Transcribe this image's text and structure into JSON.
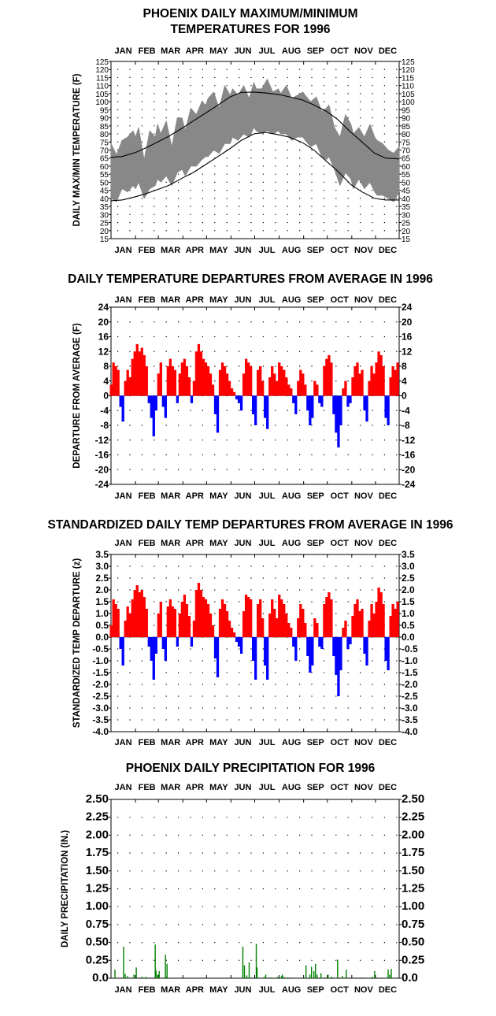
{
  "chart_data": [
    {
      "type": "line",
      "title_lines": [
        "PHOENIX DAILY MAXIMUM/MINIMUM",
        "TEMPERATURES FOR 1996"
      ],
      "ylabel": "DAILY MAX/MIN TEMPERATURE (F)",
      "months": [
        "JAN",
        "FEB",
        "MAR",
        "APR",
        "MAY",
        "JUN",
        "JUL",
        "AUG",
        "SEP",
        "OCT",
        "NOV",
        "DEC"
      ],
      "ylim": [
        15,
        125
      ],
      "yticks": [
        "15",
        "20",
        "25",
        "30",
        "35",
        "40",
        "45",
        "50",
        "55",
        "60",
        "65",
        "70",
        "75",
        "80",
        "85",
        "90",
        "95",
        "100",
        "105",
        "110",
        "115",
        "120",
        "125"
      ],
      "grid": "dotted",
      "x_unit": "day of year",
      "series": [
        {
          "key": "normal_max",
          "color": "#000000",
          "x": [
            1,
            15,
            32,
            46,
            60,
            74,
            91,
            105,
            121,
            135,
            152,
            166,
            182,
            196,
            213,
            227,
            244,
            258,
            274,
            288,
            305,
            319,
            335,
            349,
            366
          ],
          "y": [
            65.5,
            66,
            68.5,
            71.5,
            75,
            78.5,
            83.5,
            88,
            93,
            97.5,
            103,
            105.8,
            106,
            105.5,
            104.5,
            103,
            101,
            98,
            94,
            89,
            81,
            75,
            68,
            65,
            64.5
          ]
        },
        {
          "key": "normal_min",
          "color": "#000000",
          "x": [
            1,
            15,
            32,
            46,
            60,
            74,
            91,
            105,
            121,
            135,
            152,
            166,
            182,
            196,
            213,
            227,
            244,
            258,
            274,
            288,
            305,
            319,
            335,
            349,
            366
          ],
          "y": [
            38.5,
            39,
            41,
            43,
            45.5,
            48,
            52.5,
            56,
            61,
            65.5,
            71,
            76,
            80,
            81,
            79.5,
            78,
            74.5,
            70,
            63,
            57,
            48.5,
            44,
            40,
            39,
            39
          ]
        }
      ],
      "observed_band": {
        "color": "#888888",
        "x": [
          1,
          8,
          15,
          22,
          29,
          32,
          36,
          43,
          50,
          57,
          60,
          64,
          71,
          78,
          85,
          91,
          95,
          102,
          109,
          116,
          121,
          124,
          131,
          138,
          145,
          152,
          155,
          162,
          169,
          176,
          182,
          185,
          192,
          199,
          206,
          213,
          216,
          223,
          230,
          237,
          244,
          247,
          254,
          261,
          268,
          274,
          277,
          284,
          291,
          298,
          305,
          308,
          315,
          322,
          329,
          335,
          338,
          345,
          352,
          359,
          366
        ],
        "max": [
          74,
          67,
          76,
          78,
          82,
          78,
          84,
          64,
          82,
          78,
          86,
          80,
          88,
          72,
          90,
          90,
          82,
          96,
          92,
          100,
          98,
          102,
          106,
          96,
          110,
          104,
          108,
          104,
          110,
          102,
          112,
          108,
          108,
          114,
          106,
          108,
          105,
          110,
          102,
          104,
          106,
          104,
          100,
          103,
          94,
          96,
          98,
          84,
          78,
          92,
          86,
          80,
          84,
          78,
          86,
          78,
          76,
          74,
          70,
          68,
          72
        ],
        "min": [
          40,
          38,
          46,
          44,
          48,
          46,
          50,
          40,
          46,
          48,
          52,
          50,
          54,
          48,
          56,
          58,
          54,
          60,
          60,
          64,
          66,
          66,
          70,
          68,
          74,
          74,
          78,
          76,
          80,
          78,
          84,
          82,
          80,
          82,
          80,
          82,
          80,
          80,
          76,
          78,
          78,
          76,
          72,
          74,
          66,
          64,
          66,
          58,
          48,
          56,
          52,
          46,
          52,
          46,
          50,
          44,
          42,
          42,
          40,
          38,
          44
        ]
      }
    },
    {
      "type": "bar",
      "title": "DAILY TEMPERATURE DEPARTURES FROM AVERAGE IN 1996",
      "ylabel": "DEPARTURE FROM AVERAGE (F)",
      "months": [
        "JAN",
        "FEB",
        "MAR",
        "APR",
        "MAY",
        "JUN",
        "JUL",
        "AUG",
        "SEP",
        "OCT",
        "NOV",
        "DEC"
      ],
      "ylim": [
        -24,
        24
      ],
      "yticks": [
        "-24",
        "-20",
        "-16",
        "-12",
        "-8",
        "-4",
        "0",
        "4",
        "8",
        "12",
        "16",
        "20",
        "24"
      ],
      "pos_color": "#ff0000",
      "neg_color": "#0000ff",
      "x_unit": "day of year",
      "x": [
        1,
        4,
        7,
        10,
        13,
        16,
        19,
        22,
        25,
        28,
        31,
        34,
        37,
        40,
        43,
        46,
        49,
        52,
        55,
        58,
        61,
        64,
        67,
        70,
        73,
        76,
        79,
        82,
        85,
        88,
        91,
        94,
        97,
        100,
        103,
        106,
        109,
        112,
        115,
        118,
        121,
        124,
        127,
        130,
        133,
        136,
        139,
        142,
        145,
        148,
        151,
        154,
        157,
        160,
        163,
        166,
        169,
        172,
        175,
        178,
        181,
        184,
        187,
        190,
        193,
        196,
        199,
        202,
        205,
        208,
        211,
        214,
        217,
        220,
        223,
        226,
        229,
        232,
        235,
        238,
        241,
        244,
        247,
        250,
        253,
        256,
        259,
        262,
        265,
        268,
        271,
        274,
        277,
        280,
        283,
        286,
        289,
        292,
        295,
        298,
        301,
        304,
        307,
        310,
        313,
        316,
        319,
        322,
        325,
        328,
        331,
        334,
        337,
        340,
        343,
        346,
        349,
        352,
        355,
        358,
        361,
        364
      ],
      "values": [
        3,
        9,
        8,
        7,
        -3,
        -7,
        4,
        7,
        5,
        10,
        12,
        14,
        12,
        13,
        11,
        8,
        -2,
        -6,
        -11,
        -4,
        6,
        9,
        -3,
        -6,
        8,
        10,
        8,
        7,
        -2,
        6,
        9,
        10,
        8,
        5,
        -2,
        4,
        12,
        14,
        12,
        10,
        9,
        8,
        6,
        3,
        -5,
        -10,
        7,
        9,
        8,
        6,
        4,
        2,
        1,
        -1,
        -2,
        -4,
        6,
        10,
        9,
        8,
        -5,
        -8,
        7,
        8,
        4,
        -6,
        -9,
        5,
        8,
        6,
        4,
        9,
        8,
        7,
        5,
        3,
        2,
        -2,
        -5,
        4,
        7,
        6,
        3,
        -4,
        -8,
        -6,
        4,
        3,
        -2,
        -3,
        8,
        10,
        11,
        9,
        -5,
        -10,
        -14,
        -8,
        2,
        4,
        -3,
        -2,
        5,
        8,
        9,
        6,
        7,
        -4,
        -7,
        4,
        8,
        6,
        9,
        12,
        11,
        8,
        -6,
        -8,
        5,
        8,
        7,
        9
      ]
    },
    {
      "type": "bar",
      "title": "STANDARDIZED DAILY TEMP DEPARTURES FROM AVERAGE IN 1996",
      "ylabel": "STANDARDIZED TEMP DEPARTURE (z)",
      "months": [
        "JAN",
        "FEB",
        "MAR",
        "APR",
        "MAY",
        "JUN",
        "JUL",
        "AUG",
        "SEP",
        "OCT",
        "NOV",
        "DEC"
      ],
      "ylim": [
        -4.0,
        3.5
      ],
      "yticks": [
        "-4.0",
        "-3.5",
        "-3.0",
        "-2.5",
        "-2.0",
        "-1.5",
        "-1.0",
        "-0.5",
        "0.0",
        "0.5",
        "1.0",
        "1.5",
        "2.0",
        "2.5",
        "3.0",
        "3.5"
      ],
      "pos_color": "#ff0000",
      "neg_color": "#0000ff",
      "x_unit": "day of year",
      "x": [
        1,
        4,
        7,
        10,
        13,
        16,
        19,
        22,
        25,
        28,
        31,
        34,
        37,
        40,
        43,
        46,
        49,
        52,
        55,
        58,
        61,
        64,
        67,
        70,
        73,
        76,
        79,
        82,
        85,
        88,
        91,
        94,
        97,
        100,
        103,
        106,
        109,
        112,
        115,
        118,
        121,
        124,
        127,
        130,
        133,
        136,
        139,
        142,
        145,
        148,
        151,
        154,
        157,
        160,
        163,
        166,
        169,
        172,
        175,
        178,
        181,
        184,
        187,
        190,
        193,
        196,
        199,
        202,
        205,
        208,
        211,
        214,
        217,
        220,
        223,
        226,
        229,
        232,
        235,
        238,
        241,
        244,
        247,
        250,
        253,
        256,
        259,
        262,
        265,
        268,
        271,
        274,
        277,
        280,
        283,
        286,
        289,
        292,
        295,
        298,
        301,
        304,
        307,
        310,
        313,
        316,
        319,
        322,
        325,
        328,
        331,
        334,
        337,
        340,
        343,
        346,
        349,
        352,
        355,
        358,
        361,
        364
      ],
      "values": [
        0.5,
        1.6,
        1.4,
        1.2,
        -0.5,
        -1.2,
        0.7,
        1.3,
        1.0,
        1.6,
        2.0,
        2.2,
        1.9,
        2.0,
        1.7,
        1.2,
        -0.4,
        -1.0,
        -1.8,
        -0.7,
        1.0,
        1.5,
        -0.5,
        -1.0,
        1.3,
        1.6,
        1.3,
        1.2,
        -0.4,
        1.0,
        1.5,
        1.8,
        1.4,
        0.9,
        -0.4,
        0.7,
        2.0,
        2.3,
        2.0,
        1.7,
        1.6,
        1.4,
        1.0,
        0.5,
        -0.9,
        -1.7,
        1.2,
        1.6,
        1.4,
        1.1,
        0.7,
        0.4,
        0.2,
        -0.2,
        -0.4,
        -0.7,
        1.1,
        1.8,
        1.7,
        1.6,
        -1.0,
        -1.8,
        1.4,
        1.6,
        0.8,
        -1.2,
        -1.8,
        1.0,
        1.6,
        1.2,
        0.8,
        1.8,
        1.6,
        1.4,
        1.0,
        0.6,
        0.4,
        -0.4,
        -1.0,
        0.8,
        1.4,
        1.2,
        0.6,
        -0.8,
        -1.5,
        -1.2,
        0.8,
        0.6,
        -0.4,
        -0.5,
        1.4,
        1.7,
        1.9,
        1.6,
        -0.8,
        -1.6,
        -2.5,
        -1.4,
        0.4,
        0.7,
        -0.5,
        -0.3,
        0.9,
        1.4,
        1.6,
        1.1,
        1.2,
        -0.7,
        -1.2,
        0.7,
        1.4,
        1.0,
        1.5,
        2.1,
        1.9,
        1.4,
        -1.0,
        -1.4,
        0.9,
        1.4,
        1.2,
        1.5
      ]
    },
    {
      "type": "bar",
      "title": "PHOENIX DAILY PRECIPITATION FOR 1996",
      "ylabel": "DAILY PRECIPITATION (IN.)",
      "months": [
        "JAN",
        "FEB",
        "MAR",
        "APR",
        "MAY",
        "JUN",
        "JUL",
        "AUG",
        "SEP",
        "OCT",
        "NOV",
        "DEC"
      ],
      "ylim": [
        0,
        2.5
      ],
      "yticks": [
        "0.0",
        "0.25",
        "0.50",
        "0.75",
        "1.00",
        "1.25",
        "1.50",
        "1.75",
        "2.00",
        "2.25",
        "2.50"
      ],
      "color": "#008000",
      "x_unit": "day of year",
      "x": [
        6,
        17,
        19,
        22,
        30,
        33,
        40,
        45,
        57,
        58,
        60,
        61,
        62,
        70,
        71,
        72,
        168,
        170,
        173,
        176,
        178,
        185,
        186,
        195,
        197,
        203,
        212,
        217,
        218,
        220,
        224,
        227,
        248,
        253,
        255,
        258,
        260,
        262,
        267,
        272,
        276,
        280,
        282,
        288,
        294,
        299,
        318,
        332,
        335,
        352,
        354,
        356
      ],
      "values": [
        0.12,
        0.44,
        0.06,
        0.03,
        0.05,
        0.15,
        0.02,
        0.02,
        0.47,
        0.11,
        0.05,
        0.02,
        0.1,
        0.33,
        0.02,
        0.2,
        0.44,
        0.18,
        0.04,
        0.22,
        0.01,
        0.48,
        0.15,
        0.02,
        0.05,
        0.01,
        0.02,
        0.03,
        0.05,
        0.02,
        0.01,
        0.01,
        0.18,
        0.05,
        0.16,
        0.1,
        0.2,
        0.05,
        0.07,
        0.01,
        0.05,
        0.02,
        0.01,
        0.26,
        0.03,
        0.12,
        0.01,
        0.02,
        0.1,
        0.12,
        0.05,
        0.13
      ]
    }
  ]
}
